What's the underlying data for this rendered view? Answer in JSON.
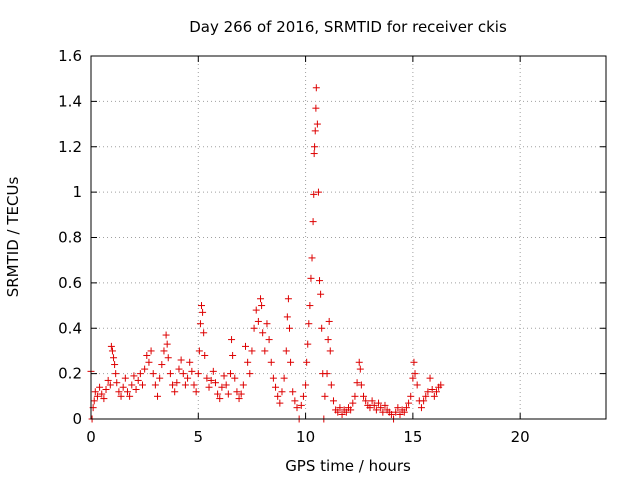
{
  "chart_data": {
    "type": "scatter",
    "title": "Day 266 of 2016, SRMTID for receiver ckis",
    "xlabel": "GPS time / hours",
    "ylabel": "SRMTID / TECUs",
    "xlim": [
      0,
      24
    ],
    "ylim": [
      0,
      1.6
    ],
    "xticks": [
      0,
      5,
      10,
      15,
      20
    ],
    "yticks": [
      0,
      0.2,
      0.4,
      0.6,
      0.8,
      1,
      1.2,
      1.4,
      1.6
    ],
    "xtick_labels": [
      "0",
      "5",
      "10",
      "15",
      "20"
    ],
    "ytick_labels": [
      "0",
      "0.2",
      "0.4",
      "0.6",
      "0.8",
      "1",
      "1.2",
      "1.4",
      "1.6"
    ],
    "grid": true,
    "marker": "plus",
    "marker_color": "#dd0000",
    "series": [
      {
        "values_xy": [
          [
            0.0,
            0.21
          ],
          [
            0.05,
            0.0
          ],
          [
            0.1,
            0.05
          ],
          [
            0.15,
            0.08
          ],
          [
            0.2,
            0.12
          ],
          [
            0.3,
            0.1
          ],
          [
            0.4,
            0.14
          ],
          [
            0.5,
            0.11
          ],
          [
            0.6,
            0.09
          ],
          [
            0.7,
            0.13
          ],
          [
            0.8,
            0.17
          ],
          [
            0.9,
            0.15
          ],
          [
            0.95,
            0.32
          ],
          [
            1.0,
            0.3
          ],
          [
            1.05,
            0.27
          ],
          [
            1.1,
            0.24
          ],
          [
            1.15,
            0.2
          ],
          [
            1.2,
            0.16
          ],
          [
            1.3,
            0.12
          ],
          [
            1.4,
            0.1
          ],
          [
            1.5,
            0.14
          ],
          [
            1.6,
            0.18
          ],
          [
            1.7,
            0.12
          ],
          [
            1.8,
            0.1
          ],
          [
            1.9,
            0.15
          ],
          [
            2.0,
            0.19
          ],
          [
            2.1,
            0.13
          ],
          [
            2.2,
            0.17
          ],
          [
            2.3,
            0.2
          ],
          [
            2.4,
            0.15
          ],
          [
            2.5,
            0.22
          ],
          [
            2.6,
            0.28
          ],
          [
            2.7,
            0.25
          ],
          [
            2.8,
            0.3
          ],
          [
            2.9,
            0.2
          ],
          [
            3.0,
            0.15
          ],
          [
            3.1,
            0.1
          ],
          [
            3.2,
            0.18
          ],
          [
            3.3,
            0.24
          ],
          [
            3.4,
            0.3
          ],
          [
            3.5,
            0.37
          ],
          [
            3.55,
            0.33
          ],
          [
            3.6,
            0.27
          ],
          [
            3.7,
            0.2
          ],
          [
            3.8,
            0.15
          ],
          [
            3.9,
            0.12
          ],
          [
            4.0,
            0.16
          ],
          [
            4.1,
            0.22
          ],
          [
            4.2,
            0.26
          ],
          [
            4.3,
            0.2
          ],
          [
            4.4,
            0.15
          ],
          [
            4.5,
            0.18
          ],
          [
            4.6,
            0.25
          ],
          [
            4.7,
            0.21
          ],
          [
            4.8,
            0.15
          ],
          [
            4.9,
            0.12
          ],
          [
            5.0,
            0.2
          ],
          [
            5.05,
            0.3
          ],
          [
            5.1,
            0.42
          ],
          [
            5.15,
            0.5
          ],
          [
            5.2,
            0.47
          ],
          [
            5.25,
            0.38
          ],
          [
            5.3,
            0.28
          ],
          [
            5.4,
            0.18
          ],
          [
            5.5,
            0.14
          ],
          [
            5.6,
            0.17
          ],
          [
            5.7,
            0.21
          ],
          [
            5.8,
            0.16
          ],
          [
            5.9,
            0.11
          ],
          [
            6.0,
            0.09
          ],
          [
            6.1,
            0.14
          ],
          [
            6.2,
            0.19
          ],
          [
            6.3,
            0.15
          ],
          [
            6.4,
            0.11
          ],
          [
            6.5,
            0.2
          ],
          [
            6.55,
            0.35
          ],
          [
            6.6,
            0.28
          ],
          [
            6.7,
            0.18
          ],
          [
            6.8,
            0.12
          ],
          [
            6.9,
            0.09
          ],
          [
            7.0,
            0.11
          ],
          [
            7.1,
            0.15
          ],
          [
            7.2,
            0.32
          ],
          [
            7.3,
            0.25
          ],
          [
            7.4,
            0.2
          ],
          [
            7.5,
            0.3
          ],
          [
            7.6,
            0.4
          ],
          [
            7.7,
            0.48
          ],
          [
            7.8,
            0.43
          ],
          [
            7.9,
            0.53
          ],
          [
            7.95,
            0.5
          ],
          [
            8.0,
            0.38
          ],
          [
            8.1,
            0.3
          ],
          [
            8.2,
            0.42
          ],
          [
            8.3,
            0.35
          ],
          [
            8.4,
            0.25
          ],
          [
            8.5,
            0.18
          ],
          [
            8.6,
            0.14
          ],
          [
            8.7,
            0.1
          ],
          [
            8.8,
            0.07
          ],
          [
            8.9,
            0.12
          ],
          [
            9.0,
            0.18
          ],
          [
            9.1,
            0.3
          ],
          [
            9.15,
            0.45
          ],
          [
            9.2,
            0.53
          ],
          [
            9.25,
            0.4
          ],
          [
            9.3,
            0.25
          ],
          [
            9.4,
            0.12
          ],
          [
            9.5,
            0.08
          ],
          [
            9.6,
            0.05
          ],
          [
            9.7,
            0.0
          ],
          [
            9.8,
            0.06
          ],
          [
            9.9,
            0.1
          ],
          [
            10.0,
            0.15
          ],
          [
            10.05,
            0.25
          ],
          [
            10.1,
            0.33
          ],
          [
            10.15,
            0.42
          ],
          [
            10.2,
            0.5
          ],
          [
            10.25,
            0.62
          ],
          [
            10.3,
            0.71
          ],
          [
            10.35,
            0.87
          ],
          [
            10.38,
            0.99
          ],
          [
            10.4,
            1.17
          ],
          [
            10.42,
            1.2
          ],
          [
            10.45,
            1.27
          ],
          [
            10.48,
            1.37
          ],
          [
            10.5,
            1.46
          ],
          [
            10.55,
            1.3
          ],
          [
            10.6,
            1.0
          ],
          [
            10.65,
            0.61
          ],
          [
            10.7,
            0.55
          ],
          [
            10.75,
            0.4
          ],
          [
            10.8,
            0.2
          ],
          [
            10.85,
            0.0
          ],
          [
            10.9,
            0.1
          ],
          [
            11.0,
            0.2
          ],
          [
            11.05,
            0.35
          ],
          [
            11.1,
            0.43
          ],
          [
            11.15,
            0.3
          ],
          [
            11.2,
            0.15
          ],
          [
            11.3,
            0.08
          ],
          [
            11.4,
            0.04
          ],
          [
            11.5,
            0.03
          ],
          [
            11.6,
            0.05
          ],
          [
            11.7,
            0.02
          ],
          [
            11.8,
            0.04
          ],
          [
            11.9,
            0.03
          ],
          [
            12.0,
            0.05
          ],
          [
            12.1,
            0.04
          ],
          [
            12.2,
            0.07
          ],
          [
            12.3,
            0.1
          ],
          [
            12.4,
            0.16
          ],
          [
            12.5,
            0.25
          ],
          [
            12.55,
            0.22
          ],
          [
            12.6,
            0.15
          ],
          [
            12.7,
            0.1
          ],
          [
            12.8,
            0.08
          ],
          [
            12.9,
            0.06
          ],
          [
            13.0,
            0.05
          ],
          [
            13.1,
            0.08
          ],
          [
            13.2,
            0.06
          ],
          [
            13.3,
            0.04
          ],
          [
            13.4,
            0.07
          ],
          [
            13.5,
            0.05
          ],
          [
            13.6,
            0.03
          ],
          [
            13.7,
            0.06
          ],
          [
            13.8,
            0.04
          ],
          [
            13.9,
            0.03
          ],
          [
            14.0,
            0.02
          ],
          [
            14.1,
            0.0
          ],
          [
            14.2,
            0.03
          ],
          [
            14.3,
            0.05
          ],
          [
            14.4,
            0.02
          ],
          [
            14.5,
            0.04
          ],
          [
            14.6,
            0.03
          ],
          [
            14.7,
            0.05
          ],
          [
            14.8,
            0.07
          ],
          [
            14.9,
            0.1
          ],
          [
            15.0,
            0.18
          ],
          [
            15.05,
            0.25
          ],
          [
            15.1,
            0.2
          ],
          [
            15.2,
            0.15
          ],
          [
            15.3,
            0.08
          ],
          [
            15.4,
            0.05
          ],
          [
            15.5,
            0.08
          ],
          [
            15.6,
            0.1
          ],
          [
            15.7,
            0.12
          ],
          [
            15.8,
            0.18
          ],
          [
            15.9,
            0.13
          ],
          [
            16.0,
            0.1
          ],
          [
            16.1,
            0.12
          ],
          [
            16.2,
            0.14
          ],
          [
            16.3,
            0.15
          ]
        ]
      }
    ]
  }
}
